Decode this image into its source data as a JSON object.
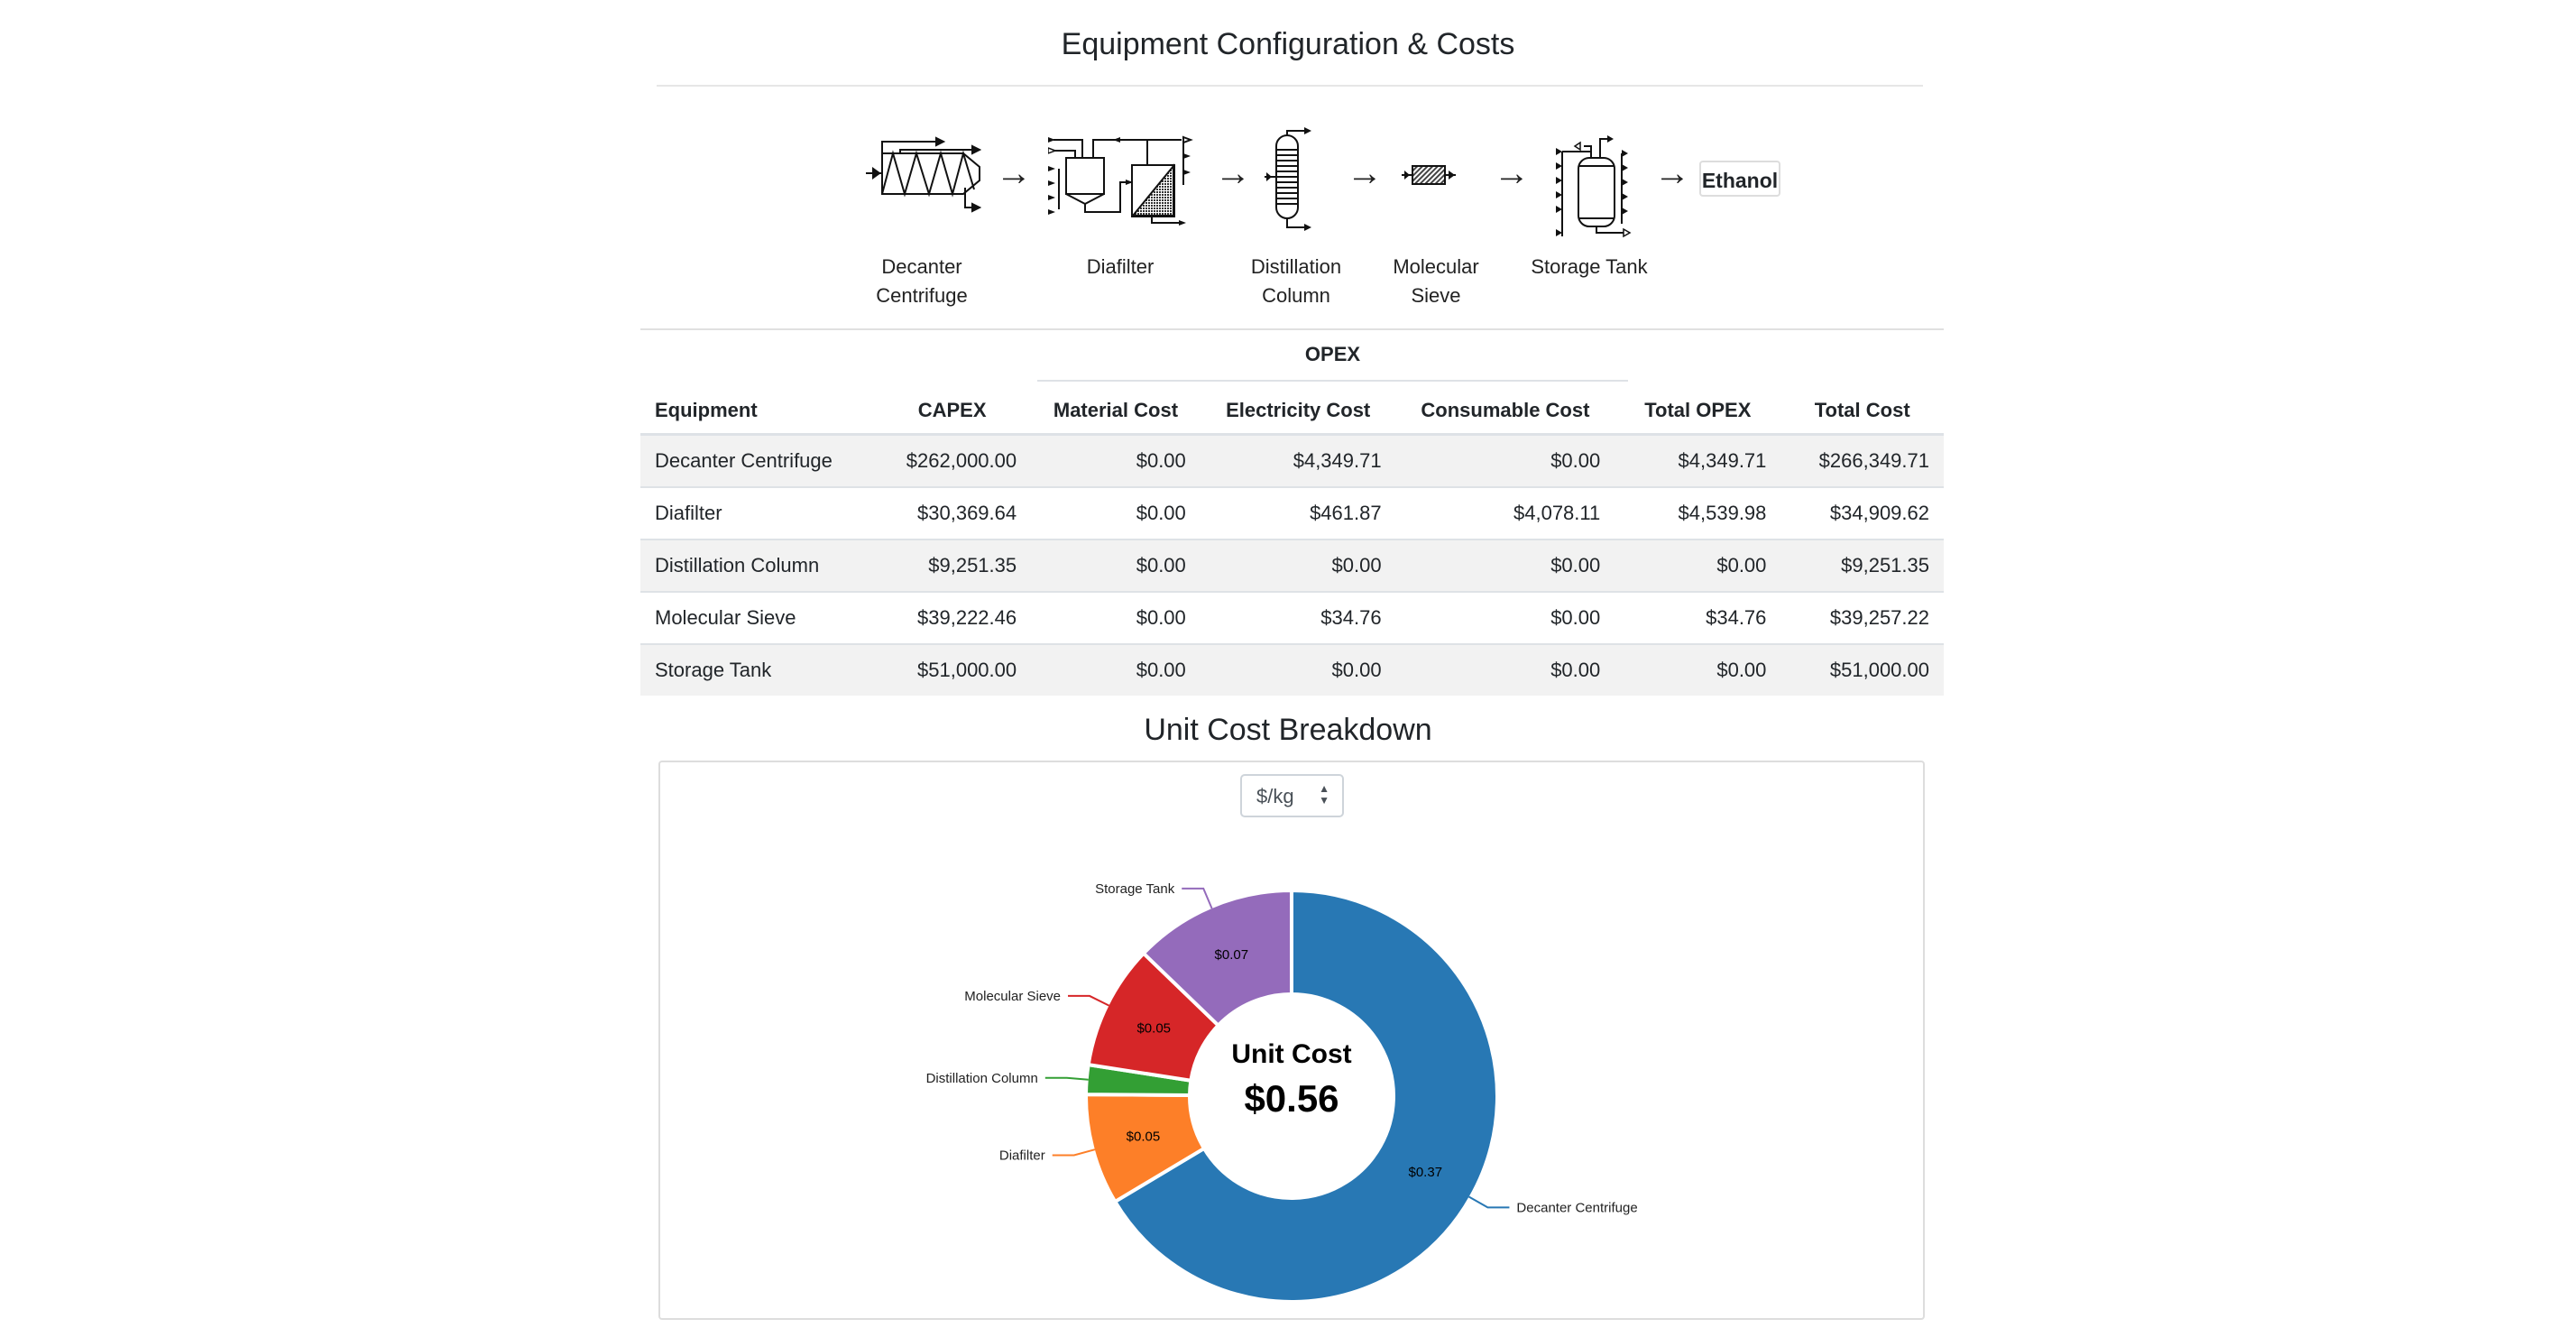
{
  "header": {
    "title": "Equipment Configuration & Costs"
  },
  "flow": {
    "steps": [
      {
        "label_line1": "Decanter",
        "label_line2": "Centrifuge",
        "icon": "decanter-centrifuge-icon"
      },
      {
        "label_line1": "Diafilter",
        "label_line2": "",
        "icon": "diafilter-icon"
      },
      {
        "label_line1": "Distillation",
        "label_line2": "Column",
        "icon": "distillation-column-icon"
      },
      {
        "label_line1": "Molecular",
        "label_line2": "Sieve",
        "icon": "molecular-sieve-icon"
      },
      {
        "label_line1": "Storage Tank",
        "label_line2": "",
        "icon": "storage-tank-icon"
      }
    ],
    "arrow": "→",
    "product": "Ethanol"
  },
  "table": {
    "group_header": "OPEX",
    "columns": [
      "Equipment",
      "CAPEX",
      "Material Cost",
      "Electricity Cost",
      "Consumable Cost",
      "Total OPEX",
      "Total Cost"
    ],
    "rows": [
      [
        "Decanter Centrifuge",
        "$262,000.00",
        "$0.00",
        "$4,349.71",
        "$0.00",
        "$4,349.71",
        "$266,349.71"
      ],
      [
        "Diafilter",
        "$30,369.64",
        "$0.00",
        "$461.87",
        "$4,078.11",
        "$4,539.98",
        "$34,909.62"
      ],
      [
        "Distillation Column",
        "$9,251.35",
        "$0.00",
        "$0.00",
        "$0.00",
        "$0.00",
        "$9,251.35"
      ],
      [
        "Molecular Sieve",
        "$39,222.46",
        "$0.00",
        "$34.76",
        "$0.00",
        "$34.76",
        "$39,257.22"
      ],
      [
        "Storage Tank",
        "$51,000.00",
        "$0.00",
        "$0.00",
        "$0.00",
        "$0.00",
        "$51,000.00"
      ]
    ]
  },
  "breakdown": {
    "title": "Unit Cost Breakdown",
    "unit_select": {
      "value": "$/kg",
      "caret": "▲▼"
    }
  },
  "chart_data": {
    "type": "pie",
    "variant": "donut",
    "title": "Unit Cost Breakdown",
    "center_label": "Unit Cost",
    "center_value": "$0.56",
    "unit": "$/kg",
    "slices": [
      {
        "name": "Decanter Centrifuge",
        "value": 0.374,
        "label": "$0.37",
        "color": "#2878b4"
      },
      {
        "name": "Diafilter",
        "value": 0.049,
        "label": "$0.05",
        "color": "#fd7f28"
      },
      {
        "name": "Distillation Column",
        "value": 0.013,
        "label": "",
        "color": "#339f34"
      },
      {
        "name": "Molecular Sieve",
        "value": 0.055,
        "label": "$0.05",
        "color": "#d62628"
      },
      {
        "name": "Storage Tank",
        "value": 0.072,
        "label": "$0.07",
        "color": "#946bbb"
      }
    ],
    "legend": "outside-labels"
  }
}
